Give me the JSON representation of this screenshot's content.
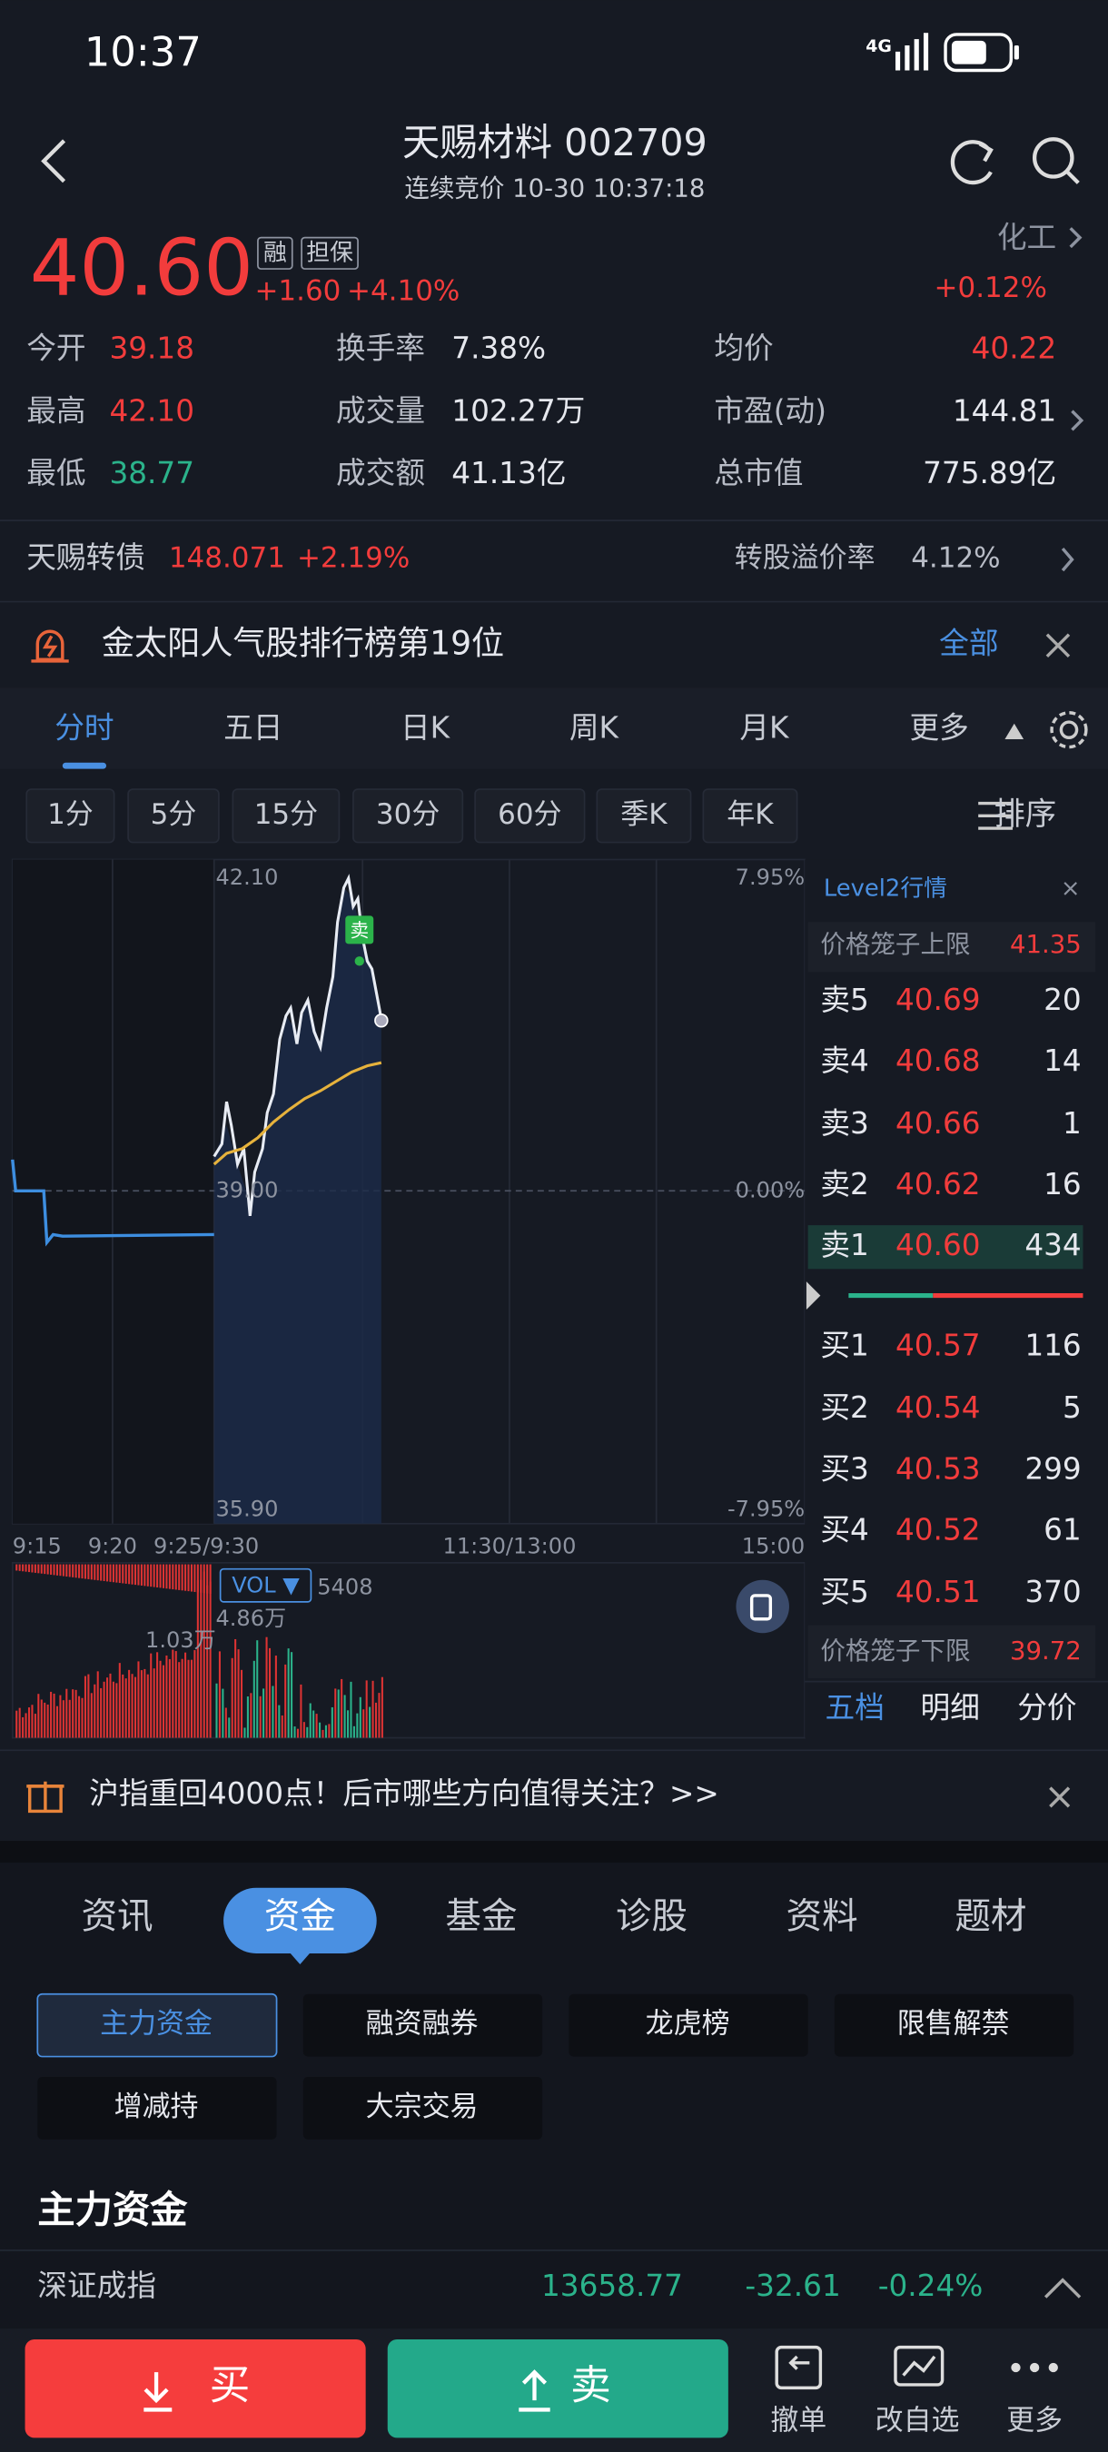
{
  "status": {
    "time": "10:37",
    "network": "4G"
  },
  "header": {
    "title": "天赐材料 002709",
    "subtitle": "连续竞价 10-30 10:37:18"
  },
  "quote": {
    "price": "40.60",
    "tags": [
      "融",
      "担保"
    ],
    "change": "+1.60",
    "change_pct": "+4.10%",
    "sector": "化工",
    "sector_change": "+0.12%"
  },
  "stats": [
    {
      "label": "今开",
      "value": "39.18"
    },
    {
      "label": "换手率",
      "value": "7.38%"
    },
    {
      "label": "均价",
      "value": "40.22"
    },
    {
      "label": "最高",
      "value": "42.10"
    },
    {
      "label": "成交量",
      "value": "102.27万"
    },
    {
      "label": "市盈(动)",
      "value": "144.81"
    },
    {
      "label": "最低",
      "value": "38.77"
    },
    {
      "label": "成交额",
      "value": "41.13亿"
    },
    {
      "label": "总市值",
      "value": "775.89亿"
    }
  ],
  "bond": {
    "name": "天赐转债",
    "price": "148.071",
    "change": "+2.19%",
    "premium_label": "转股溢价率",
    "premium_value": "4.12%"
  },
  "banner": {
    "text": "金太阳人气股排行榜第19位",
    "link": "全部"
  },
  "tabs": [
    "分时",
    "五日",
    "日K",
    "周K",
    "月K",
    "更多"
  ],
  "periods": [
    "1分",
    "5分",
    "15分",
    "30分",
    "60分",
    "季K",
    "年K"
  ],
  "sort": "排序",
  "chart": {
    "price_labels": [
      "42.10",
      "39.00",
      "35.90"
    ],
    "pct_labels": [
      "7.95%",
      "0.00%",
      "-7.95%"
    ],
    "times": [
      "9:15",
      "9:20",
      "9:25/9:30",
      "11:30/13:00",
      "15:00"
    ],
    "marker": "卖",
    "volume": {
      "label": "VOL ▼",
      "value": "5408",
      "max": "4.86万",
      "pre": "1.03万"
    }
  },
  "order_book": {
    "title": "Level2行情",
    "upper_label": "价格笼子上限",
    "upper_value": "41.35",
    "asks": [
      {
        "label": "卖5",
        "price": "40.69",
        "volume": "20"
      },
      {
        "label": "卖4",
        "price": "40.68",
        "volume": "14"
      },
      {
        "label": "卖3",
        "price": "40.66",
        "volume": "1"
      },
      {
        "label": "卖2",
        "price": "40.62",
        "volume": "16"
      },
      {
        "label": "卖1",
        "price": "40.60",
        "volume": "434"
      }
    ],
    "bids": [
      {
        "label": "买1",
        "price": "40.57",
        "volume": "116"
      },
      {
        "label": "买2",
        "price": "40.54",
        "volume": "5"
      },
      {
        "label": "买3",
        "price": "40.53",
        "volume": "299"
      },
      {
        "label": "买4",
        "price": "40.52",
        "volume": "61"
      },
      {
        "label": "买5",
        "price": "40.51",
        "volume": "370"
      }
    ],
    "lower_label": "价格笼子下限",
    "lower_value": "39.72",
    "tabs": [
      "五档",
      "明细",
      "分价"
    ]
  },
  "notice": "沪指重回4000点！后市哪些方向值得关注？>>",
  "section_tabs": [
    "资讯",
    "资金",
    "基金",
    "诊股",
    "资料",
    "题材"
  ],
  "fund_buttons": [
    "主力资金",
    "融资融券",
    "龙虎榜",
    "限售解禁",
    "增减持",
    "大宗交易"
  ],
  "section_title": "主力资金",
  "index": {
    "name": "深证成指",
    "value": "13658.77",
    "change": "-32.61",
    "pct": "-0.24%"
  },
  "bottom": {
    "buy": "买",
    "sell": "卖",
    "actions": [
      "撤单",
      "改自选",
      "更多"
    ]
  }
}
